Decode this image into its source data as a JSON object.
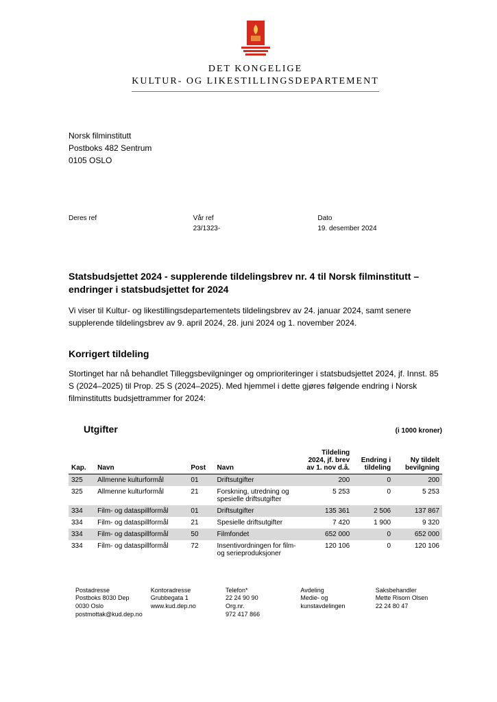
{
  "logo": {
    "line1": "DET KONGELIGE",
    "line2": "KULTUR- OG LIKESTILLINGSDEPARTEMENT",
    "crest_bg": "#d52b1e",
    "crest_accent": "#f2c94c"
  },
  "recipient": {
    "name": "Norsk filminstitutt",
    "addr1": "Postboks 482 Sentrum",
    "addr2": "0105 OSLO"
  },
  "refs": {
    "deres_label": "Deres ref",
    "deres_val": "",
    "vaar_label": "Vår ref",
    "vaar_val": "23/1323-",
    "dato_label": "Dato",
    "dato_val": "19. desember 2024"
  },
  "title": "Statsbudsjettet 2024 - supplerende tildelingsbrev nr. 4 til Norsk filminstitutt – endringer i statsbudsjettet for 2024",
  "intro": "Vi viser til Kultur- og likestillingsdepartementets tildelingsbrev av 24. januar 2024, samt senere supplerende tildelingsbrev av 9. april 2024, 28. juni 2024 og 1. november 2024.",
  "section1_head": "Korrigert tildeling",
  "section1_body": "Stortinget har nå behandlet Tilleggsbevilgninger og omprioriteringer i statsbudsjettet 2024, jf. Innst. 85 S (2024–2025) til Prop. 25 S (2024–2025). Med hjemmel i dette gjøres følgende endring i Norsk filminstitutts budsjettrammer for 2024:",
  "table": {
    "title": "Utgifter",
    "unit": "(i 1000 kroner)",
    "columns": {
      "kap": "Kap.",
      "navn1": "Navn",
      "post": "Post",
      "navn2": "Navn",
      "tildeling": "Tildeling 2024, jf. brev av 1. nov d.å.",
      "endring": "Endring i tildeling",
      "ny": "Ny tildelt bevilgning"
    },
    "rows": [
      {
        "kap": "325",
        "navn1": "Allmenne kulturformål",
        "post": "01",
        "navn2": "Driftsutgifter",
        "t": "200",
        "e": "0",
        "n": "200",
        "shaded": true
      },
      {
        "kap": "325",
        "navn1": "Allmenne kulturformål",
        "post": "21",
        "navn2": "Forskning, utredning og spesielle driftsutgifter",
        "t": "5 253",
        "e": "0",
        "n": "5 253",
        "shaded": false
      },
      {
        "kap": "334",
        "navn1": "Film- og dataspillformål",
        "post": "01",
        "navn2": "Driftsutgifter",
        "t": "135 361",
        "e": "2 506",
        "n": "137 867",
        "shaded": true
      },
      {
        "kap": "334",
        "navn1": "Film- og dataspillformål",
        "post": "21",
        "navn2": "Spesielle driftsutgifter",
        "t": "7 420",
        "e": "1 900",
        "n": "9 320",
        "shaded": false
      },
      {
        "kap": "334",
        "navn1": "Film- og dataspillformål",
        "post": "50",
        "navn2": "Filmfondet",
        "t": "652 000",
        "e": "0",
        "n": "652 000",
        "shaded": true
      },
      {
        "kap": "334",
        "navn1": "Film- og dataspillformål",
        "post": "72",
        "navn2": "Insentivordningen for film- og serieproduksjoner",
        "t": "120 106",
        "e": "0",
        "n": "120 106",
        "shaded": false
      }
    ]
  },
  "footer": {
    "c1_h": "Postadresse",
    "c1_1": "Postboks 8030 Dep",
    "c1_2": "0030 Oslo",
    "c1_3": "postmottak@kud.dep.no",
    "c2_h": "Kontoradresse",
    "c2_1": "Grubbegata 1",
    "c2_2": "",
    "c2_3": "www.kud.dep.no",
    "c3_h": "Telefon*",
    "c3_1": "22 24 90 90",
    "c3_2": "Org.nr.",
    "c3_3": "972 417 866",
    "c4_h": "Avdeling",
    "c4_1": "Medie- og kunstavdelingen",
    "c5_h": "Saksbehandler",
    "c5_1": "Mette Risom Olsen",
    "c5_2": "22 24 80 47"
  }
}
